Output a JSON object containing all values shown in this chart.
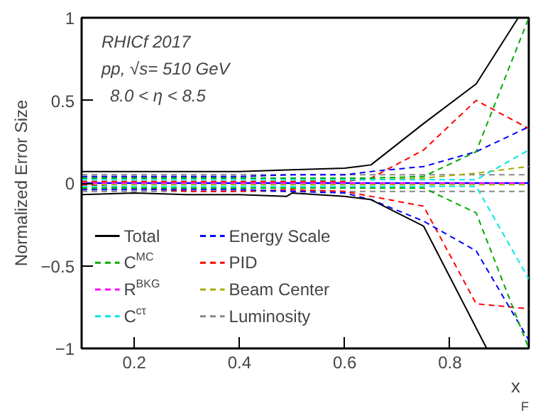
{
  "chart_data": {
    "type": "line",
    "xlabel": "x$_{F}$",
    "ylabel": "Normalized Error Size",
    "annotations": [
      "RHICf 2017",
      "pp, √s= 510 GeV",
      "8.0 < η < 8.5"
    ],
    "x": [
      0.1,
      0.2,
      0.3,
      0.4,
      0.5,
      0.6,
      0.65,
      0.75,
      0.85,
      0.95
    ],
    "xlim": [
      0.1,
      0.95
    ],
    "xticks": [
      0.2,
      0.4,
      0.6,
      0.8
    ],
    "ylim": [
      -1,
      1
    ],
    "yticks": [
      -1,
      -0.5,
      0,
      0.5,
      1
    ],
    "grid": false,
    "legend": "bottom left",
    "line_style": "dashed",
    "marker": "none",
    "ref_lines": [
      {
        "axis": "y",
        "value": 0,
        "color": "#0000ff",
        "line_style": "solid"
      }
    ],
    "series": [
      {
        "name": "Total",
        "color": "#000000",
        "line_style": "solid",
        "x": [
          0.1,
          0.2,
          0.3,
          0.4,
          0.5,
          0.6,
          0.65,
          0.75,
          0.85,
          0.93
        ],
        "values": [
          0.07,
          0.07,
          0.07,
          0.07,
          0.08,
          0.09,
          0.11,
          0.36,
          0.6,
          1.0
        ]
      },
      {
        "color": "#000000",
        "line_style": "solid",
        "x": [
          0.1,
          0.2,
          0.3,
          0.4,
          0.49,
          0.5,
          0.6,
          0.65,
          0.75,
          0.87
        ],
        "values": [
          -0.07,
          -0.06,
          -0.07,
          -0.07,
          -0.08,
          -0.06,
          -0.08,
          -0.1,
          -0.26,
          -1.0
        ]
      },
      {
        "name": "C$^{MC}$",
        "color": "#00aa00",
        "values": [
          0.03,
          0.03,
          0.03,
          0.03,
          0.03,
          0.03,
          0.03,
          0.04,
          0.19,
          1.0
        ]
      },
      {
        "color": "#00aa00",
        "values": [
          -0.03,
          -0.03,
          -0.03,
          -0.03,
          -0.03,
          -0.03,
          -0.03,
          -0.03,
          -0.18,
          -1.0
        ]
      },
      {
        "name": "R$^{BKG}$",
        "color": "#ff00ff",
        "values": [
          0,
          0,
          0,
          0,
          0,
          0,
          0,
          0,
          0,
          0
        ]
      },
      {
        "name": "C$^{cτ}$",
        "color": "#00e5e5",
        "values": [
          0.02,
          0.02,
          0.02,
          0.02,
          0.02,
          0.02,
          0.02,
          0.02,
          0.02,
          0.2
        ]
      },
      {
        "color": "#00e5e5",
        "values": [
          -0.02,
          -0.02,
          -0.02,
          -0.02,
          -0.02,
          -0.02,
          -0.02,
          -0.02,
          -0.02,
          -0.58
        ]
      },
      {
        "name": "Energy Scale",
        "color": "#0000ff",
        "values": [
          0.04,
          0.04,
          0.04,
          0.04,
          0.05,
          0.05,
          0.07,
          0.1,
          0.19,
          0.34
        ]
      },
      {
        "color": "#0000ff",
        "values": [
          -0.04,
          -0.04,
          -0.04,
          -0.04,
          -0.05,
          -0.06,
          -0.1,
          -0.23,
          -0.41,
          -0.95
        ]
      },
      {
        "name": "PID",
        "color": "#ff0000",
        "values": [
          0.01,
          0.01,
          0.01,
          0.01,
          0.01,
          0.01,
          0.03,
          0.2,
          0.5,
          0.33
        ]
      },
      {
        "color": "#ff0000",
        "values": [
          -0.01,
          -0.03,
          -0.05,
          -0.05,
          -0.04,
          -0.05,
          -0.08,
          -0.14,
          -0.73,
          -0.76
        ]
      },
      {
        "name": "Beam Center",
        "color": "#aaaa00",
        "values": [
          0.01,
          0.01,
          0.01,
          0.01,
          0.01,
          0.02,
          0.02,
          0.03,
          0.06,
          0.1
        ]
      },
      {
        "color": "#aaaa00",
        "values": [
          -0.01,
          -0.01,
          -0.01,
          -0.01,
          -0.01,
          -0.01,
          -0.01,
          -0.01,
          -0.01,
          -0.01
        ]
      },
      {
        "name": "Luminosity",
        "color": "#888888",
        "values": [
          0.05,
          0.05,
          0.05,
          0.05,
          0.05,
          0.05,
          0.05,
          0.05,
          0.05,
          0.05
        ]
      },
      {
        "color": "#888888",
        "values": [
          -0.05,
          -0.05,
          -0.05,
          -0.05,
          -0.05,
          -0.05,
          -0.05,
          -0.05,
          -0.05,
          -0.05
        ]
      }
    ]
  }
}
